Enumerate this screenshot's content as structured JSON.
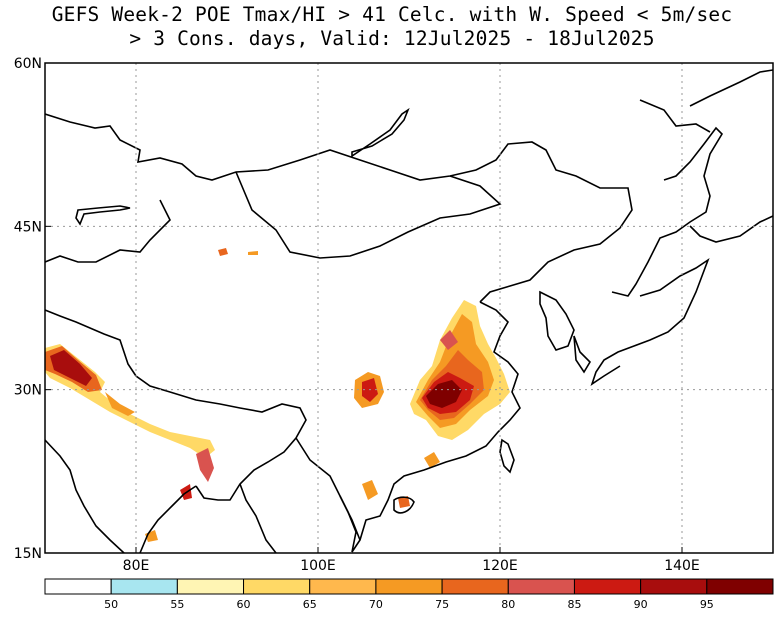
{
  "title": {
    "line1": "GEFS Week-2 POE Tmax/HI > 41 Celc. with W. Speed < 5m/sec",
    "line2": "> 3 Cons. days, Valid: 12Jul2025 - 18Jul2025"
  },
  "map": {
    "lon_range": [
      70,
      150
    ],
    "lat_range": [
      15,
      60
    ],
    "lon_ticks": [
      {
        "value": 80,
        "label": "80E"
      },
      {
        "value": 100,
        "label": "100E"
      },
      {
        "value": 120,
        "label": "120E"
      },
      {
        "value": 140,
        "label": "140E"
      }
    ],
    "lat_ticks": [
      {
        "value": 60,
        "label": "60N"
      },
      {
        "value": 45,
        "label": "45N"
      },
      {
        "value": 30,
        "label": "30N"
      },
      {
        "value": 15,
        "label": "15N"
      }
    ],
    "grid": "dotted"
  },
  "colorbar": {
    "labels": [
      "50",
      "55",
      "60",
      "65",
      "70",
      "75",
      "80",
      "85",
      "90",
      "95"
    ],
    "colors": [
      "#ffffff",
      "#a8e6f0",
      "#fff5b4",
      "#ffd966",
      "#ffb84d",
      "#f59a23",
      "#e8661e",
      "#d9534f",
      "#cc1a12",
      "#a80d0d",
      "#7f0000"
    ]
  }
}
